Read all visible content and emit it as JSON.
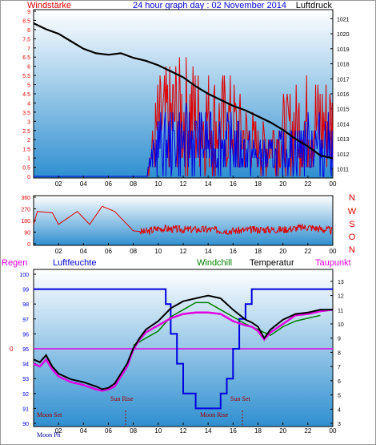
{
  "header": {
    "left": "Windstärke",
    "center": "24 hour graph day : 02 November 2014",
    "right": "Luftdruck"
  },
  "wind_dir_labels": [
    "N",
    "W",
    "S",
    "O",
    "N"
  ],
  "bottom_header": {
    "regen": "Regen",
    "luftfeuchte": "Luftfeuchte",
    "windchill": "Windchill",
    "temperatur": "Temperatur",
    "taupunkt": "Taupunkt"
  },
  "annotations": {
    "sun_rise": "Sun Rise",
    "sun_set": "Sun Set",
    "moon_set": "Moon Set",
    "moon_rise": "Moon Rise",
    "moon_phase": "Moon Ph"
  },
  "colors": {
    "red": "#e00000",
    "blue": "#0000e0",
    "black": "#000000",
    "green": "#008000",
    "magenta": "#e000e0",
    "panel_top": "#ffffff",
    "panel_bottom": "#2f8fd0"
  },
  "chart_data": [
    {
      "type": "line",
      "panel": "wind_pressure",
      "x_ticks": [
        "02",
        "04",
        "06",
        "08",
        "10",
        "12",
        "14",
        "16",
        "18",
        "20",
        "22",
        "00"
      ],
      "y_left_ticks": [
        "0",
        "0.5",
        "1",
        "1.5",
        "2",
        "2.5",
        "3",
        "3.5",
        "4",
        "4.5",
        "5",
        "5.5",
        "6",
        "6.5",
        "7",
        "7.5",
        "8",
        "8.5",
        "9"
      ],
      "y_right_ticks": [
        "1011",
        "1012",
        "1013",
        "1014",
        "1015",
        "1016",
        "1017",
        "1018",
        "1019",
        "1020",
        "1021"
      ],
      "ylim_left": [
        0,
        9
      ],
      "ylim_right": [
        1010.5,
        1021.5
      ],
      "series": [
        {
          "axis": "right",
          "color": "black",
          "x": [
            0,
            1,
            2,
            3,
            4,
            5,
            6,
            7,
            8,
            9,
            10,
            11,
            12,
            13,
            14,
            15,
            16,
            17,
            18,
            19,
            20,
            21,
            22,
            23,
            24
          ],
          "values": [
            1020.7,
            1020.3,
            1020.0,
            1019.5,
            1019.0,
            1018.7,
            1018.6,
            1018.7,
            1018.4,
            1018.2,
            1017.9,
            1017.5,
            1017.1,
            1016.5,
            1016.0,
            1015.6,
            1015.2,
            1014.9,
            1014.5,
            1014.1,
            1013.6,
            1013.0,
            1012.5,
            1011.9,
            1011.7
          ]
        },
        {
          "axis": "left",
          "color": "red",
          "x": [
            0,
            9,
            10,
            12,
            14,
            16,
            18,
            20,
            22,
            24
          ],
          "values": [
            0,
            0,
            5.5,
            7,
            6,
            5.5,
            3,
            4.5,
            6,
            5.5
          ]
        },
        {
          "axis": "left",
          "color": "blue",
          "x": [
            0,
            9,
            10,
            12,
            14,
            16,
            18,
            20,
            22,
            24
          ],
          "values": [
            0,
            0,
            3.5,
            4,
            3.5,
            3.5,
            2,
            2.5,
            3.5,
            3.5
          ]
        }
      ]
    },
    {
      "type": "line",
      "panel": "wind_direction",
      "x_ticks": [
        "02",
        "04",
        "06",
        "08",
        "10",
        "12",
        "14",
        "16",
        "18",
        "20",
        "22",
        "00"
      ],
      "y_ticks": [
        "0",
        "90",
        "180",
        "270",
        "360"
      ],
      "ylim": [
        0,
        360
      ],
      "series": [
        {
          "color": "red",
          "x": [
            0,
            0.3,
            1.5,
            2,
            3.5,
            4.5,
            5.5,
            6.5,
            7,
            8,
            9,
            10,
            12,
            14,
            16,
            18,
            20,
            22,
            24
          ],
          "values": [
            150,
            250,
            240,
            150,
            250,
            150,
            290,
            250,
            200,
            100,
            90,
            120,
            110,
            110,
            100,
            110,
            110,
            130,
            100
          ]
        }
      ]
    },
    {
      "type": "line",
      "panel": "temperature_humidity",
      "x_ticks": [
        "02",
        "04",
        "06",
        "08",
        "10",
        "12",
        "14",
        "16",
        "18",
        "20",
        "22",
        "00"
      ],
      "y_left_ticks": [
        "90",
        "91",
        "92",
        "93",
        "94",
        "95",
        "96",
        "97",
        "98",
        "99",
        "100"
      ],
      "y_right_ticks": [
        "3",
        "4",
        "5",
        "6",
        "7",
        "8",
        "9",
        "10",
        "11",
        "12",
        "13"
      ],
      "ylim_left": [
        90,
        100
      ],
      "ylim_right": [
        3,
        13.5
      ],
      "rain_marker": "0",
      "series": [
        {
          "name": "Luftfeuchte",
          "axis": "left",
          "color": "blue",
          "x": [
            0,
            10.2,
            10.6,
            11,
            11.5,
            12,
            13,
            14,
            15,
            15.5,
            16,
            16.5,
            17,
            17.5,
            24
          ],
          "values": [
            99,
            99,
            98,
            96,
            94,
            92,
            91,
            91,
            92,
            93,
            95,
            97,
            98,
            99,
            99
          ]
        },
        {
          "name": "Temperatur",
          "axis": "right",
          "color": "black",
          "x": [
            0,
            0.5,
            1,
            1.5,
            2,
            3,
            4,
            5,
            5.5,
            6,
            6.5,
            7,
            7.5,
            8,
            8.5,
            9,
            10,
            11,
            12,
            13,
            14,
            15,
            16,
            17,
            17.5,
            18,
            18.5,
            19,
            20,
            21,
            22,
            23,
            24
          ],
          "values": [
            7.5,
            7.3,
            7.8,
            7.0,
            6.5,
            6.1,
            5.9,
            5.6,
            5.4,
            5.5,
            5.8,
            6.5,
            7.2,
            8.3,
            9.0,
            9.6,
            10.2,
            11.1,
            11.6,
            11.8,
            12.0,
            11.8,
            11.0,
            10.3,
            10.1,
            9.8,
            9.0,
            9.6,
            10.3,
            10.7,
            10.8,
            11.0,
            11.0
          ]
        },
        {
          "name": "Taupunkt",
          "axis": "right",
          "color": "magenta",
          "x": [
            0,
            0.5,
            1,
            1.5,
            2,
            3,
            4,
            5,
            5.5,
            6,
            6.5,
            7,
            7.5,
            8,
            8.5,
            9,
            10,
            11,
            12,
            13,
            14,
            15,
            16,
            17,
            17.5,
            18,
            18.5,
            19,
            20,
            21,
            22,
            23,
            24
          ],
          "values": [
            7.2,
            7.0,
            7.5,
            6.8,
            6.3,
            5.9,
            5.7,
            5.4,
            5.3,
            5.4,
            5.6,
            6.3,
            7.0,
            8.2,
            8.9,
            9.4,
            9.9,
            10.4,
            10.7,
            10.8,
            10.8,
            10.7,
            10.2,
            9.9,
            9.8,
            9.5,
            8.9,
            9.4,
            10.0,
            10.6,
            10.7,
            10.9,
            11.0
          ]
        },
        {
          "name": "Windchill",
          "axis": "right",
          "color": "green",
          "x": [
            8,
            9,
            10,
            11,
            12,
            13,
            14,
            15,
            16,
            17,
            18,
            19,
            20,
            21,
            22,
            23
          ],
          "values": [
            8.5,
            9.0,
            9.5,
            10.5,
            11.0,
            11.5,
            11.5,
            11.0,
            10.5,
            10.0,
            9.6,
            9.2,
            9.8,
            10.2,
            10.4,
            10.6
          ]
        }
      ]
    }
  ]
}
